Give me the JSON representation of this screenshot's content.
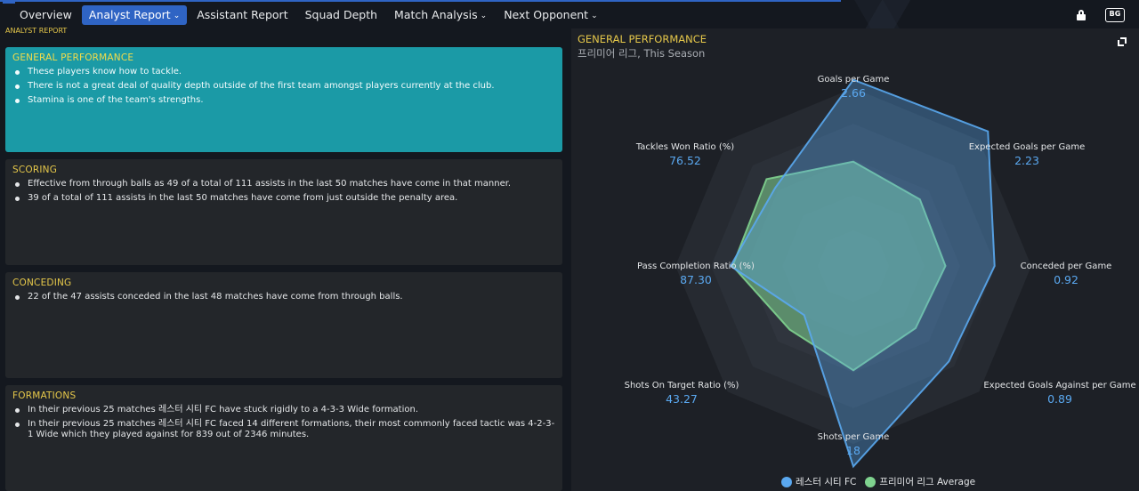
{
  "nav": {
    "items": [
      {
        "label": "Overview",
        "has_menu": false,
        "active": false
      },
      {
        "label": "Analyst Report",
        "has_menu": true,
        "active": true
      },
      {
        "label": "Assistant Report",
        "has_menu": false,
        "active": false
      },
      {
        "label": "Squad Depth",
        "has_menu": false,
        "active": false
      },
      {
        "label": "Match Analysis",
        "has_menu": true,
        "active": false
      },
      {
        "label": "Next Opponent",
        "has_menu": true,
        "active": false
      }
    ],
    "icons": [
      "lock-icon",
      "badge-icon"
    ],
    "badge_text": "BG"
  },
  "breadcrumb": "ANALYST REPORT",
  "sections": [
    {
      "title": "GENERAL PERFORMANCE",
      "bullets": [
        "These players know how to tackle.",
        "There is not a great deal of quality depth outside of the first team amongst players currently at the club.",
        "Stamina is one of the team's strengths."
      ]
    },
    {
      "title": "SCORING",
      "bullets": [
        "Effective from through balls as 49 of a total of 111 assists in the last 50 matches have come in that manner.",
        "39 of a total of 111 assists in the last 50 matches have come from just outside the penalty area."
      ]
    },
    {
      "title": "CONCEDING",
      "bullets": [
        "22 of the 47 assists conceded in the last 48 matches have come from through balls."
      ]
    },
    {
      "title": "FORMATIONS",
      "bullets": [
        "In their previous 25 matches 레스터 시티 FC have stuck rigidly to a 4-3-3 Wide formation.",
        "In their previous 25 matches 레스터 시티 FC faced 14 different formations, their most commonly faced tactic was 4-2-3-1 Wide which they played against for 839 out of 2346 minutes."
      ]
    }
  ],
  "chart_panel": {
    "title": "GENERAL PERFORMANCE",
    "subtitle": "프리미어 리그, This Season"
  },
  "colors": {
    "accent": "#2f64c4",
    "highlight_panel": "#1b9aa6",
    "title_yellow": "#e6c84a",
    "team_series": "#5aa8f0",
    "league_series": "#7fd38f"
  },
  "chart_data": {
    "type": "radar",
    "axes": [
      {
        "label": "Goals per Game",
        "value": "2.66"
      },
      {
        "label": "Expected Goals per Game",
        "value": "2.23"
      },
      {
        "label": "Conceded per Game",
        "value": "0.92"
      },
      {
        "label": "Expected Goals Against per Game",
        "value": "0.89"
      },
      {
        "label": "Shots per Game",
        "value": "18"
      },
      {
        "label": "Shots On Target Ratio (%)",
        "value": "43.27"
      },
      {
        "label": "Pass Completion Ratio (%)",
        "value": "87.30"
      },
      {
        "label": "Tackles Won Ratio (%)",
        "value": "76.52"
      }
    ],
    "series": [
      {
        "name": "레스터 시티 FC",
        "color": "#5aa8f0",
        "relative": [
          0.91,
          0.93,
          0.69,
          0.66,
          0.98,
          0.34,
          0.6,
          0.54
        ]
      },
      {
        "name": "프리미어 리그 Average",
        "color": "#7fd38f",
        "relative": [
          0.51,
          0.46,
          0.45,
          0.43,
          0.51,
          0.44,
          0.59,
          0.6
        ]
      }
    ],
    "legend": "bottom-center"
  }
}
